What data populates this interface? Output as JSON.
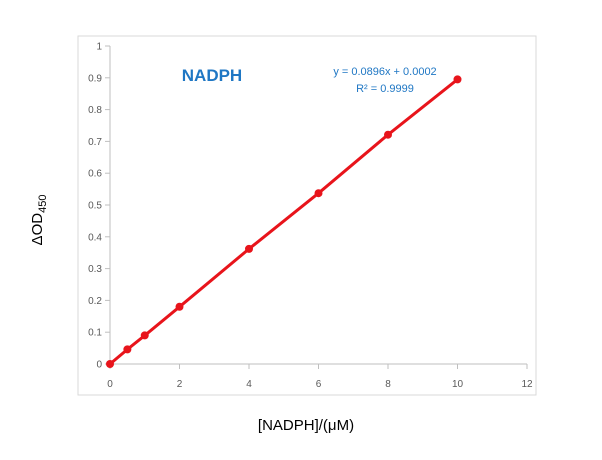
{
  "chart_data": {
    "type": "scatter",
    "title": "NADPH",
    "xlabel": "[NADPH]/(μM)",
    "ylabel": "ΔOD",
    "ylabel_sub": "450",
    "xlim": [
      0,
      12
    ],
    "ylim": [
      0,
      1
    ],
    "x_ticks": [
      "0",
      "2",
      "4",
      "6",
      "8",
      "10",
      "12"
    ],
    "y_ticks": [
      "0",
      "0.1",
      "0.2",
      "0.3",
      "0.4",
      "0.5",
      "0.6",
      "0.7",
      "0.8",
      "0.9",
      "1"
    ],
    "grid": false,
    "series": [
      {
        "x": [
          0,
          0.5,
          1,
          2,
          4,
          6,
          8,
          10
        ],
        "y": [
          0.0,
          0.046,
          0.09,
          0.18,
          0.362,
          0.537,
          0.721,
          0.895
        ]
      }
    ],
    "trendline": {
      "equation": "y = 0.0896x + 0.0002",
      "r_squared": "R² = 0.9999",
      "slope": 0.0896,
      "intercept": 0.0002
    },
    "colors": {
      "series": "#e8141b",
      "title": "#1f77c4",
      "equation": "#1f77c4",
      "axis": "#bfbfbf",
      "frame": "#d9d9d9"
    }
  }
}
